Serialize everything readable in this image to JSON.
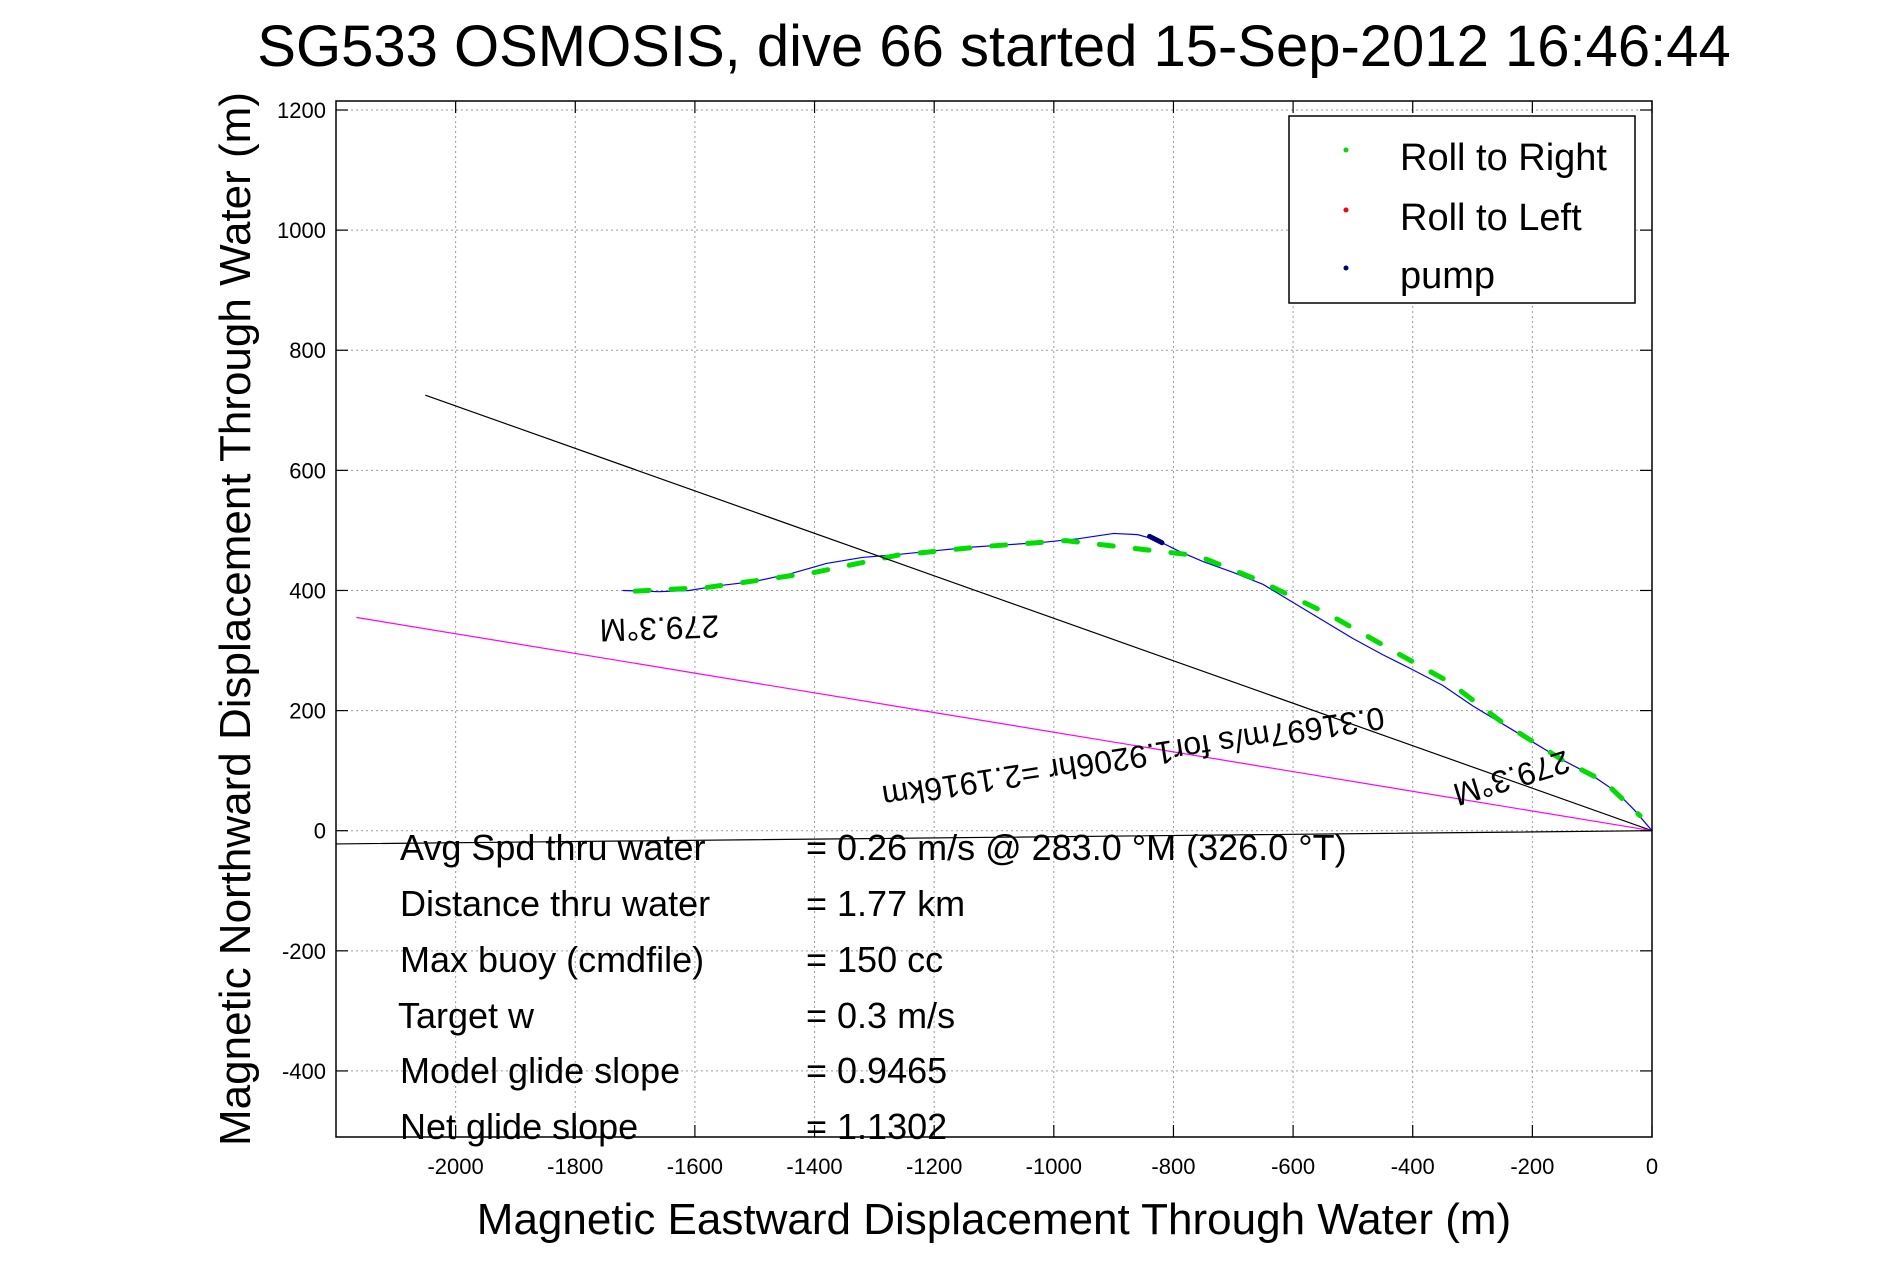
{
  "chart_data": {
    "type": "line",
    "title": "SG533 OSMOSIS, dive 66 started 15-Sep-2012 16:46:44",
    "xlabel": "Magnetic Eastward Displacement Through Water (m)",
    "ylabel": "Magnetic Northward Displacement Through Water (m)",
    "xlim": [
      -2200,
      0
    ],
    "ylim": [
      -510,
      1215
    ],
    "xticks": [
      -2000,
      -1800,
      -1600,
      -1400,
      -1200,
      -1000,
      -800,
      -600,
      -400,
      -200,
      0
    ],
    "yticks": [
      -400,
      -200,
      0,
      200,
      400,
      600,
      800,
      1000,
      1200
    ],
    "grid": true,
    "legend_position": "top-right",
    "legend": [
      {
        "label": "Roll to Right",
        "color": "#00dd00"
      },
      {
        "label": "Roll to Left",
        "color": "#ff0000"
      },
      {
        "label": "pump",
        "color": "#000080"
      }
    ],
    "series": [
      {
        "color": "#0000ff",
        "x": [
          -1720,
          -1660,
          -1610,
          -1560,
          -1500,
          -1440,
          -1380,
          -1320,
          -1260,
          -1200,
          -1140,
          -1080,
          -1020,
          -960,
          -900,
          -860,
          -830,
          -790,
          -750,
          -700,
          -650,
          -600,
          -550,
          -500,
          -450,
          -400,
          -350,
          -300,
          -250,
          -200,
          -150,
          -100,
          -60,
          -30,
          0
        ],
        "y": [
          400,
          398,
          400,
          408,
          415,
          428,
          445,
          455,
          460,
          466,
          472,
          476,
          480,
          486,
          495,
          493,
          485,
          465,
          448,
          430,
          410,
          380,
          350,
          320,
          293,
          268,
          242,
          208,
          178,
          148,
          118,
          92,
          65,
          35,
          0
        ]
      },
      {
        "name": "Roll to Right",
        "color": "#00dd00",
        "x": [
          -1700,
          -1580,
          -1400,
          -1260,
          -1120,
          -980,
          -760,
          -660,
          -540,
          -430,
          -340,
          -250,
          -150,
          -80,
          -20
        ],
        "y": [
          399,
          405,
          430,
          459,
          473,
          483,
          458,
          418,
          360,
          298,
          248,
          180,
          118,
          82,
          25
        ]
      },
      {
        "name": "pump",
        "color": "#000080",
        "x": [
          -840,
          -820,
          -800
        ],
        "y": [
          490,
          480,
          468
        ]
      },
      {
        "color": "#000000",
        "x": [
          -2050,
          0
        ],
        "y": [
          725,
          0
        ]
      },
      {
        "color": "#ff00ff",
        "x": [
          -2165,
          0
        ],
        "y": [
          355,
          0
        ]
      },
      {
        "color": "#000000",
        "x": [
          -2200,
          0
        ],
        "y": [
          -22,
          0
        ]
      }
    ],
    "annotations": [
      {
        "text": "279.3°M",
        "x": -1660,
        "y": 355,
        "rotation": 178
      },
      {
        "text": "0.31697m/s for1.9206hr =2.1916km",
        "x": -870,
        "y": 140,
        "rotation": 171
      },
      {
        "text": "279.3°M",
        "x": -240,
        "y": 105,
        "rotation": 163
      }
    ],
    "stats": [
      {
        "label": "Avg Spd thru water",
        "value": "=  0.26 m/s @ 283.0 °M (326.0 °T)"
      },
      {
        "label": "Distance thru water",
        "value": "=  1.77 km"
      },
      {
        "label": "Max buoy (cmdfile)",
        "value": "= 150 cc"
      },
      {
        "label": "Target w",
        "value": "= 0.3 m/s"
      },
      {
        "label": "Model glide slope",
        "value": "= 0.9465"
      },
      {
        "label": "Net glide slope",
        "value": "= 1.1302"
      }
    ]
  }
}
